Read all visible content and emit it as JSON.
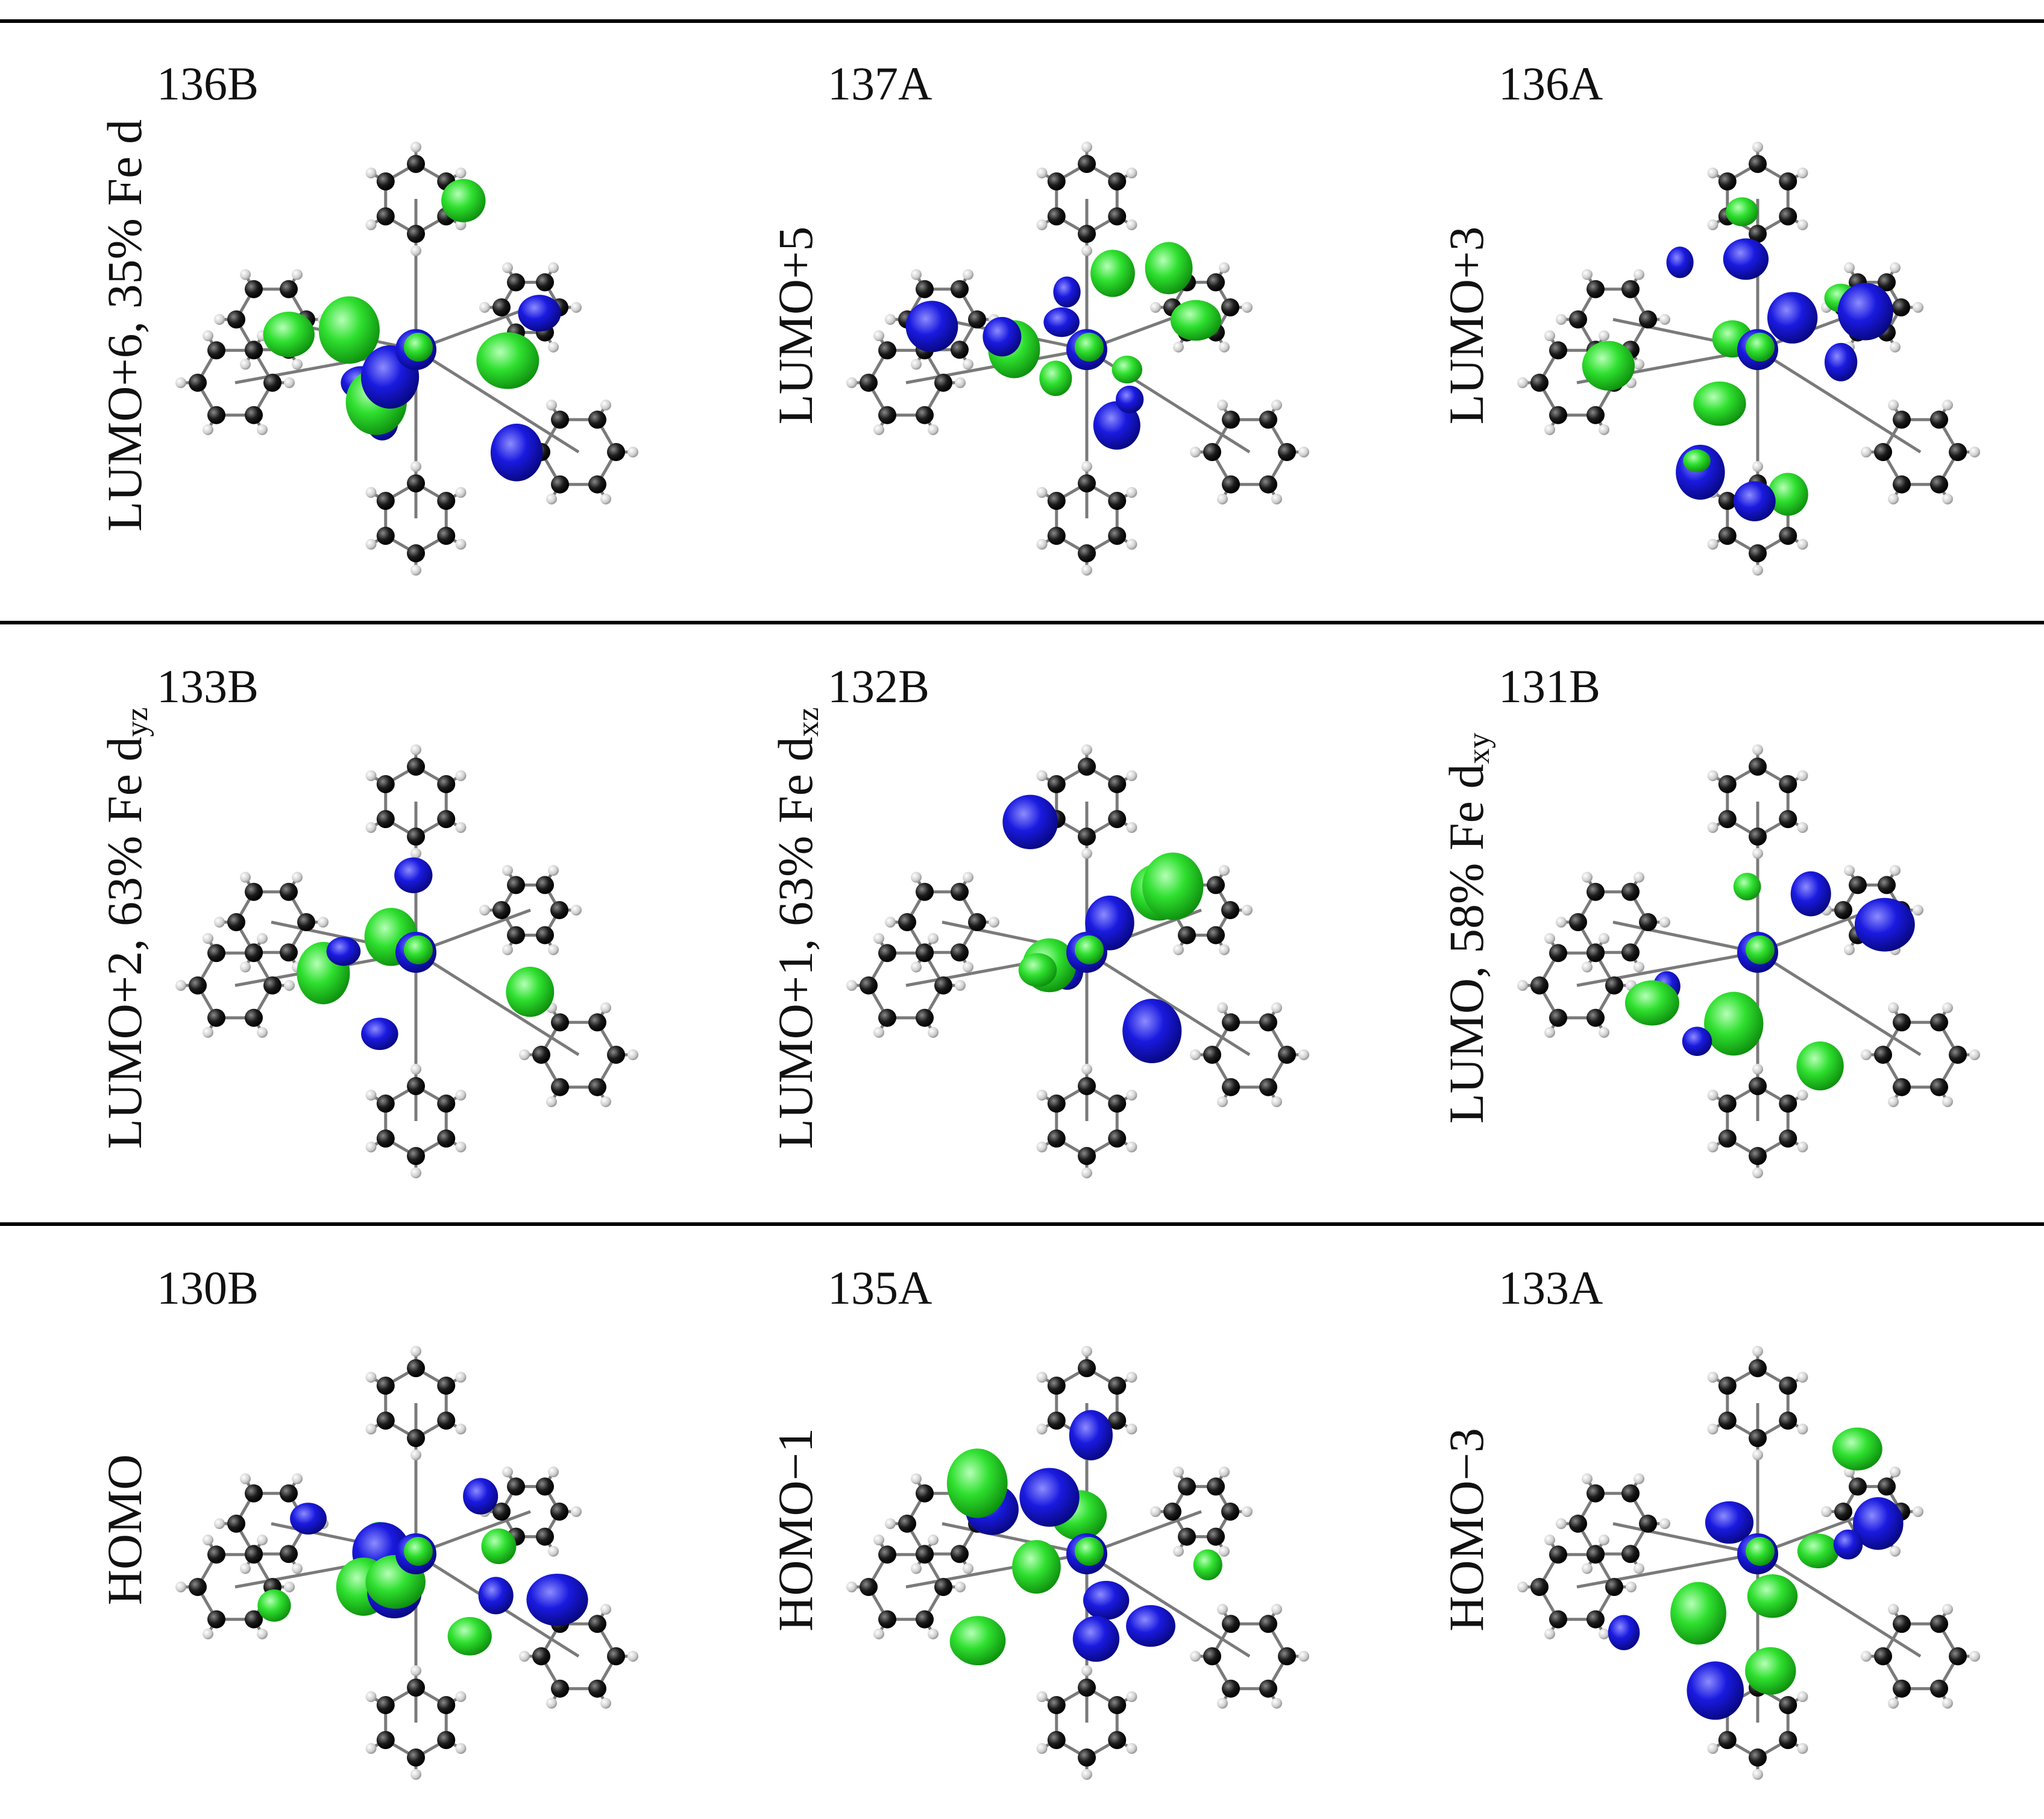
{
  "figure": {
    "rows": [
      {
        "cells": [
          {
            "orbital": "136B",
            "label": "LUMO+6, 35% Fe d",
            "sub": ""
          },
          {
            "orbital": "137A",
            "label": "LUMO+5",
            "sub": ""
          },
          {
            "orbital": "136A",
            "label": "LUMO+3",
            "sub": ""
          }
        ]
      },
      {
        "cells": [
          {
            "orbital": "133B",
            "label": "LUMO+2, 63% Fe d",
            "sub": "yz"
          },
          {
            "orbital": "132B",
            "label": "LUMO+1, 63% Fe d",
            "sub": "xz"
          },
          {
            "orbital": "131B",
            "label": "LUMO, 58% Fe d",
            "sub": "xy"
          }
        ]
      },
      {
        "cells": [
          {
            "orbital": "130B",
            "label": "HOMO",
            "sub": ""
          },
          {
            "orbital": "135A",
            "label": "HOMO−1",
            "sub": ""
          },
          {
            "orbital": "133A",
            "label": "HOMO−3",
            "sub": ""
          }
        ]
      }
    ],
    "colors": {
      "positive_lobe": "#22dd22",
      "negative_lobe": "#1a1adb",
      "metal": "#8a5ab8"
    },
    "atom_icons": [
      "carbon-atom-icon",
      "hydrogen-atom-icon",
      "iron-atom-icon"
    ]
  }
}
